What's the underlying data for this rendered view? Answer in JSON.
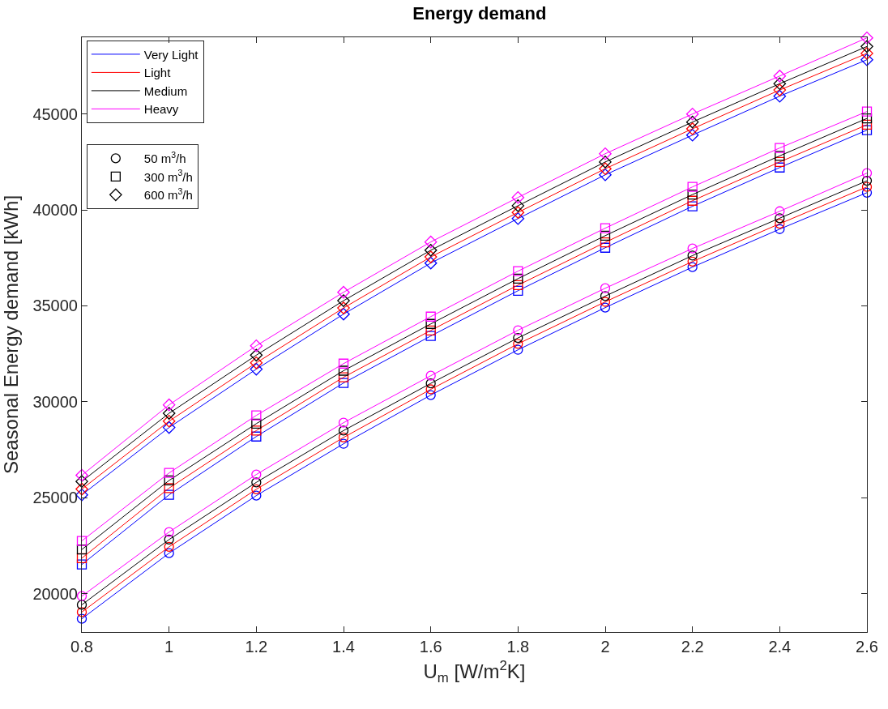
{
  "chart_data": {
    "type": "line",
    "title": "Energy demand",
    "xlabel": "U$_{m}$ [W/m$^{2}$K]",
    "ylabel": "Seasonal Energy demand [kWh]",
    "x": [
      0.8,
      1.0,
      1.2,
      1.4,
      1.6,
      1.8,
      2.0,
      2.2,
      2.4,
      2.6
    ],
    "xlim": [
      0.8,
      2.6
    ],
    "xticks": [
      0.8,
      1,
      1.2,
      1.4,
      1.6,
      1.8,
      2,
      2.2,
      2.4,
      2.6
    ],
    "ylim": [
      18000,
      49000
    ],
    "yticks": [
      20000,
      25000,
      30000,
      35000,
      40000,
      45000
    ],
    "grid": false,
    "legend": "top left",
    "series": [
      {
        "color": "#0000ff",
        "marker": "circle",
        "values": [
          18690,
          22110,
          25110,
          27810,
          30350,
          32710,
          34910,
          37020,
          39000,
          40900
        ]
      },
      {
        "color": "#ff0000",
        "marker": "circle",
        "values": [
          19040,
          22440,
          25440,
          28140,
          30650,
          33020,
          35210,
          37310,
          39280,
          41200
        ]
      },
      {
        "color": "#000000",
        "marker": "circle",
        "values": [
          19420,
          22820,
          25800,
          28500,
          30960,
          33330,
          35510,
          37620,
          39570,
          41520
        ]
      },
      {
        "color": "#ff00ff",
        "marker": "circle",
        "values": [
          19870,
          23210,
          26210,
          28910,
          31360,
          33730,
          35920,
          37990,
          39930,
          41920
        ]
      },
      {
        "color": "#0000ff",
        "marker": "square",
        "values": [
          21520,
          25150,
          28190,
          30980,
          33430,
          35790,
          38030,
          40190,
          42210,
          44160
        ]
      },
      {
        "color": "#ff0000",
        "marker": "square",
        "values": [
          21850,
          25500,
          28500,
          31280,
          33720,
          36080,
          38310,
          40480,
          42500,
          44440
        ]
      },
      {
        "color": "#000000",
        "marker": "square",
        "values": [
          22300,
          25900,
          28860,
          31620,
          34060,
          36420,
          38660,
          40800,
          42820,
          44770
        ]
      },
      {
        "color": "#ff00ff",
        "marker": "square",
        "values": [
          22750,
          26290,
          29290,
          31990,
          34440,
          36810,
          39050,
          41200,
          43230,
          45130
        ]
      },
      {
        "color": "#0000ff",
        "marker": "diamond",
        "values": [
          25150,
          28660,
          31700,
          34570,
          37230,
          39550,
          41830,
          43900,
          45930,
          47830
        ]
      },
      {
        "color": "#ff0000",
        "marker": "diamond",
        "values": [
          25450,
          28990,
          32030,
          34890,
          37550,
          39870,
          42150,
          44230,
          46250,
          48160
        ]
      },
      {
        "color": "#000000",
        "marker": "diamond",
        "values": [
          25850,
          29400,
          32430,
          35270,
          37900,
          40220,
          42500,
          44580,
          46580,
          48520
        ]
      },
      {
        "color": "#ff00ff",
        "marker": "diamond",
        "values": [
          26170,
          29840,
          32920,
          35710,
          38330,
          40650,
          42930,
          45000,
          46980,
          48970
        ]
      },
      {
        "name": "Very Light",
        "color": "#0000ff",
        "marker": "none",
        "values": [
          null,
          null,
          null,
          null,
          null,
          null,
          null,
          null,
          null,
          null
        ]
      },
      {
        "name": "Light",
        "color": "#ff0000",
        "marker": "none",
        "values": [
          null,
          null,
          null,
          null,
          null,
          null,
          null,
          null,
          null,
          null
        ]
      },
      {
        "name": "Medium",
        "color": "#000000",
        "marker": "none",
        "values": [
          null,
          null,
          null,
          null,
          null,
          null,
          null,
          null,
          null,
          null
        ]
      },
      {
        "name": "Heavy",
        "color": "#ff00ff",
        "marker": "none",
        "values": [
          null,
          null,
          null,
          null,
          null,
          null,
          null,
          null,
          null,
          null
        ]
      },
      {
        "type": "scatter",
        "name": "50 m$^{3}$/h",
        "color": "#000000",
        "marker": "circle",
        "values": [
          null,
          null,
          null,
          null,
          null,
          null,
          null,
          null,
          null,
          null
        ]
      },
      {
        "type": "scatter",
        "name": "300 m$^{3}$/h",
        "color": "#000000",
        "marker": "square",
        "values": [
          null,
          null,
          null,
          null,
          null,
          null,
          null,
          null,
          null,
          null
        ]
      },
      {
        "type": "scatter",
        "name": "600 m$^{3}$/h",
        "color": "#000000",
        "marker": "diamond",
        "values": [
          null,
          null,
          null,
          null,
          null,
          null,
          null,
          null,
          null,
          null
        ]
      }
    ]
  }
}
